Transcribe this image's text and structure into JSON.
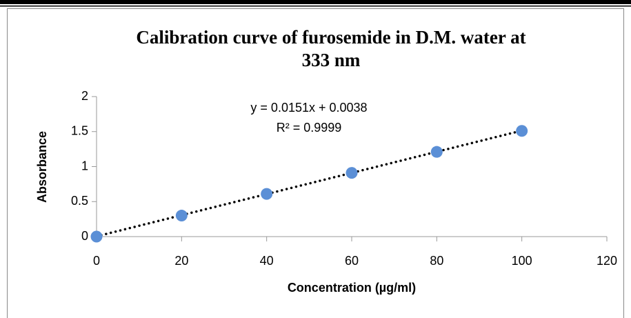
{
  "chart_data": {
    "type": "scatter",
    "title": [
      "Calibration curve of furosemide in D.M. water at",
      "333 nm"
    ],
    "x_label": "Concentration (µg/ml)",
    "y_label": "Absorbance",
    "annotations": [
      "y = 0.0151x + 0.0038",
      "R² = 0.9999"
    ],
    "series": [
      {
        "name": "Absorbance",
        "color": "#5b8fd6",
        "x": [
          0,
          20,
          40,
          60,
          80,
          100
        ],
        "values": [
          0,
          0.3,
          0.61,
          0.91,
          1.21,
          1.51
        ]
      }
    ],
    "trendline": {
      "slope": 0.0151,
      "intercept": 0.0038,
      "color": "#000000"
    },
    "xlim": [
      0,
      120
    ],
    "xticks": [
      0,
      20,
      40,
      60,
      80,
      100,
      120
    ],
    "ylim": [
      0,
      2
    ],
    "yticks": [
      0,
      0.5,
      1,
      1.5,
      2
    ],
    "grid": false
  }
}
